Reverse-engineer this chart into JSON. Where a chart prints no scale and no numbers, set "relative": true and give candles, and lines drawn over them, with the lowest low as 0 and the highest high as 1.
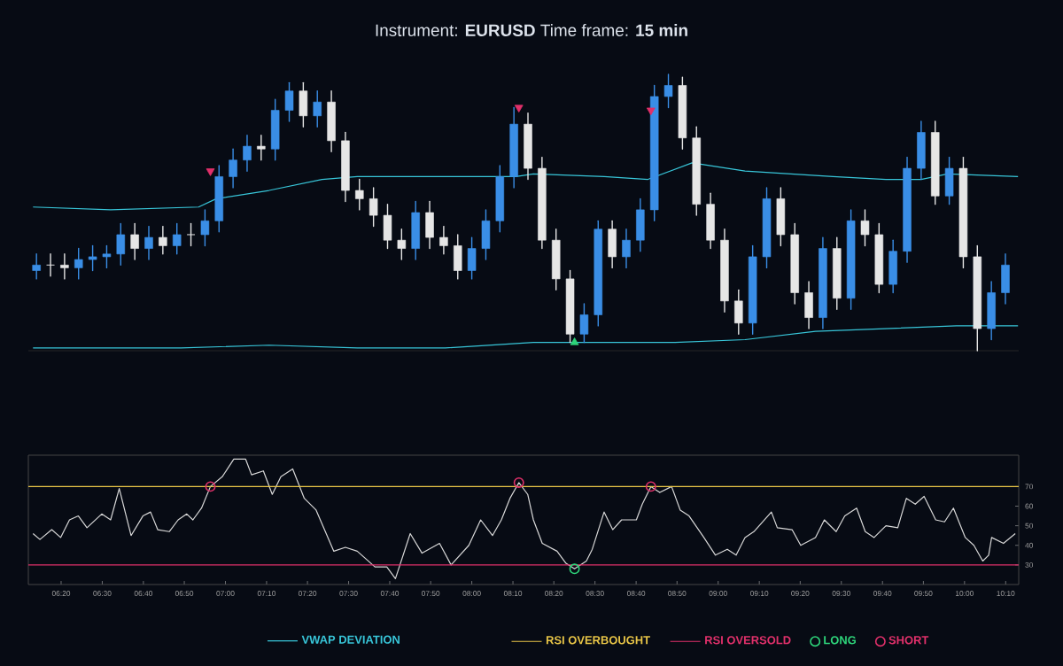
{
  "chart_data": [
    {
      "type": "candlestick",
      "title": "Instrument: **EURUSD** Time frame: **15 min**",
      "relative": true,
      "legend": "bottom",
      "xlim": [
        6.2,
        10.22
      ],
      "x": [
        6.233,
        6.29,
        6.347,
        6.404,
        6.461,
        6.518,
        6.575,
        6.632,
        6.689,
        6.746,
        6.803,
        6.86,
        6.917,
        6.974,
        7.031,
        7.088,
        7.145,
        7.202,
        7.259,
        7.316,
        7.373,
        7.43,
        7.487,
        7.544,
        7.601,
        7.658,
        7.715,
        7.772,
        7.829,
        7.886,
        7.943,
        8.0,
        8.057,
        8.114,
        8.171,
        8.228,
        8.285,
        8.342,
        8.399,
        8.456,
        8.513,
        8.57,
        8.627,
        8.684,
        8.741,
        8.798,
        8.855,
        8.912,
        8.969,
        9.026,
        9.083,
        9.14,
        9.197,
        9.254,
        9.311,
        9.368,
        9.425,
        9.482,
        9.539,
        9.596,
        9.653,
        9.71,
        9.767,
        9.824,
        9.881,
        9.938,
        9.995,
        10.052,
        10.109,
        10.166
      ],
      "ohlc": [
        [
          0.29,
          0.35,
          0.26,
          0.31
        ],
        [
          0.31,
          0.35,
          0.27,
          0.31
        ],
        [
          0.31,
          0.35,
          0.26,
          0.3
        ],
        [
          0.3,
          0.37,
          0.26,
          0.33
        ],
        [
          0.33,
          0.38,
          0.29,
          0.34
        ],
        [
          0.34,
          0.38,
          0.3,
          0.35
        ],
        [
          0.35,
          0.46,
          0.31,
          0.42
        ],
        [
          0.42,
          0.46,
          0.33,
          0.37
        ],
        [
          0.37,
          0.45,
          0.33,
          0.41
        ],
        [
          0.41,
          0.45,
          0.35,
          0.38
        ],
        [
          0.38,
          0.46,
          0.35,
          0.42
        ],
        [
          0.42,
          0.46,
          0.38,
          0.42
        ],
        [
          0.42,
          0.51,
          0.38,
          0.47
        ],
        [
          0.47,
          0.67,
          0.43,
          0.63
        ],
        [
          0.63,
          0.73,
          0.59,
          0.69
        ],
        [
          0.69,
          0.78,
          0.65,
          0.74
        ],
        [
          0.74,
          0.78,
          0.69,
          0.73
        ],
        [
          0.73,
          0.91,
          0.69,
          0.87
        ],
        [
          0.87,
          0.97,
          0.83,
          0.94
        ],
        [
          0.94,
          0.97,
          0.81,
          0.85
        ],
        [
          0.85,
          0.94,
          0.81,
          0.9
        ],
        [
          0.9,
          0.94,
          0.72,
          0.76
        ],
        [
          0.76,
          0.79,
          0.54,
          0.58
        ],
        [
          0.58,
          0.62,
          0.51,
          0.55
        ],
        [
          0.55,
          0.59,
          0.45,
          0.49
        ],
        [
          0.49,
          0.53,
          0.37,
          0.4
        ],
        [
          0.4,
          0.44,
          0.33,
          0.37
        ],
        [
          0.37,
          0.54,
          0.33,
          0.5
        ],
        [
          0.5,
          0.54,
          0.37,
          0.41
        ],
        [
          0.41,
          0.45,
          0.35,
          0.38
        ],
        [
          0.38,
          0.42,
          0.26,
          0.29
        ],
        [
          0.29,
          0.41,
          0.26,
          0.37
        ],
        [
          0.37,
          0.51,
          0.33,
          0.47
        ],
        [
          0.47,
          0.67,
          0.43,
          0.63
        ],
        [
          0.63,
          0.88,
          0.59,
          0.82
        ],
        [
          0.82,
          0.86,
          0.62,
          0.66
        ],
        [
          0.66,
          0.7,
          0.37,
          0.4
        ],
        [
          0.4,
          0.44,
          0.22,
          0.26
        ],
        [
          0.26,
          0.29,
          0.03,
          0.06
        ],
        [
          0.06,
          0.17,
          0.03,
          0.13
        ],
        [
          0.13,
          0.47,
          0.09,
          0.44
        ],
        [
          0.44,
          0.47,
          0.3,
          0.34
        ],
        [
          0.34,
          0.44,
          0.3,
          0.4
        ],
        [
          0.4,
          0.55,
          0.36,
          0.51
        ],
        [
          0.51,
          0.96,
          0.47,
          0.92
        ],
        [
          0.92,
          1,
          0.88,
          0.96
        ],
        [
          0.96,
          0.99,
          0.73,
          0.77
        ],
        [
          0.77,
          0.81,
          0.49,
          0.53
        ],
        [
          0.53,
          0.57,
          0.37,
          0.4
        ],
        [
          0.4,
          0.44,
          0.14,
          0.18
        ],
        [
          0.18,
          0.22,
          0.06,
          0.1
        ],
        [
          0.1,
          0.38,
          0.06,
          0.34
        ],
        [
          0.34,
          0.59,
          0.3,
          0.55
        ],
        [
          0.55,
          0.59,
          0.38,
          0.42
        ],
        [
          0.42,
          0.46,
          0.17,
          0.21
        ],
        [
          0.21,
          0.25,
          0.08,
          0.12
        ],
        [
          0.12,
          0.41,
          0.08,
          0.37
        ],
        [
          0.37,
          0.41,
          0.15,
          0.19
        ],
        [
          0.19,
          0.51,
          0.15,
          0.47
        ],
        [
          0.47,
          0.51,
          0.38,
          0.42
        ],
        [
          0.42,
          0.46,
          0.21,
          0.24
        ],
        [
          0.24,
          0.4,
          0.21,
          0.36
        ],
        [
          0.36,
          0.7,
          0.32,
          0.66
        ],
        [
          0.66,
          0.83,
          0.62,
          0.79
        ],
        [
          0.79,
          0.83,
          0.53,
          0.56
        ],
        [
          0.56,
          0.7,
          0.53,
          0.66
        ],
        [
          0.66,
          0.7,
          0.3,
          0.34
        ],
        [
          0.34,
          0.38,
          0,
          0.08
        ],
        [
          0.08,
          0.25,
          0.04,
          0.21
        ],
        [
          0.21,
          0.35,
          0.17,
          0.31
        ]
      ],
      "colors": [
        "#3a8ee6",
        "#e6e6e6",
        "#e6e6e6",
        "#3a8ee6",
        "#3a8ee6",
        "#3a8ee6",
        "#3a8ee6",
        "#e6e6e6",
        "#3a8ee6",
        "#e6e6e6",
        "#3a8ee6",
        "#e6e6e6",
        "#3a8ee6",
        "#3a8ee6",
        "#3a8ee6",
        "#3a8ee6",
        "#e6e6e6",
        "#3a8ee6",
        "#3a8ee6",
        "#e6e6e6",
        "#3a8ee6",
        "#e6e6e6",
        "#e6e6e6",
        "#e6e6e6",
        "#e6e6e6",
        "#e6e6e6",
        "#e6e6e6",
        "#3a8ee6",
        "#e6e6e6",
        "#e6e6e6",
        "#e6e6e6",
        "#3a8ee6",
        "#3a8ee6",
        "#3a8ee6",
        "#3a8ee6",
        "#e6e6e6",
        "#e6e6e6",
        "#e6e6e6",
        "#e6e6e6",
        "#3a8ee6",
        "#3a8ee6",
        "#e6e6e6",
        "#3a8ee6",
        "#3a8ee6",
        "#3a8ee6",
        "#3a8ee6",
        "#e6e6e6",
        "#e6e6e6",
        "#e6e6e6",
        "#e6e6e6",
        "#e6e6e6",
        "#3a8ee6",
        "#3a8ee6",
        "#e6e6e6",
        "#e6e6e6",
        "#e6e6e6",
        "#3a8ee6",
        "#e6e6e6",
        "#3a8ee6",
        "#e6e6e6",
        "#e6e6e6",
        "#3a8ee6",
        "#3a8ee6",
        "#3a8ee6",
        "#e6e6e6",
        "#3a8ee6",
        "#e6e6e6",
        "#e6e6e6",
        "#3a8ee6",
        "#3a8ee6"
      ],
      "series": [
        {
          "name": "VWAP DEVIATION",
          "type": "line",
          "color": "#38c6d9",
          "x": [
            6.219,
            6.534,
            6.891,
            6.963,
            7.177,
            7.392,
            7.535,
            7.893,
            8.179,
            8.25,
            8.537,
            8.715,
            8.894,
            9.109,
            9.466,
            9.681,
            9.824,
            9.931,
            10.217
          ],
          "values": [
            0.52,
            0.51,
            0.52,
            0.55,
            0.58,
            0.62,
            0.63,
            0.63,
            0.63,
            0.64,
            0.63,
            0.62,
            0.68,
            0.65,
            0.63,
            0.62,
            0.62,
            0.64,
            0.63
          ]
        },
        {
          "type": "line",
          "color": "#38c6d9",
          "x": [
            6.219,
            6.82,
            7.177,
            7.535,
            7.893,
            8.25,
            8.465,
            8.823,
            9.109,
            9.395,
            9.681,
            9.967,
            10.217
          ],
          "values": [
            0.01,
            0.01,
            0.02,
            0.01,
            0.01,
            0.03,
            0.03,
            0.03,
            0.04,
            0.07,
            0.08,
            0.09,
            0.09
          ]
        },
        {
          "type": "scatter",
          "marker": "triangle",
          "color": "#e0306a",
          "x": [
            6.939,
            8.191,
            8.727
          ],
          "values": [
            0.65,
            0.88,
            0.87
          ]
        },
        {
          "type": "scatter",
          "marker": "triangle",
          "color": "#2ed47a",
          "x": [
            8.417
          ],
          "values": [
            0.03
          ]
        }
      ]
    },
    {
      "type": "line",
      "legend": "bottom",
      "xlim": [
        6.2,
        10.22
      ],
      "ylim": [
        20,
        86
      ],
      "yticks": [
        30,
        40,
        50,
        60,
        70
      ],
      "xticks": [
        {
          "value": 6.333,
          "label": "06:20"
        },
        {
          "value": 6.5,
          "label": "06:30"
        },
        {
          "value": 6.667,
          "label": "06:40"
        },
        {
          "value": 6.833,
          "label": "06:50"
        },
        {
          "value": 7,
          "label": "07:00"
        },
        {
          "value": 7.167,
          "label": "07:10"
        },
        {
          "value": 7.333,
          "label": "07:20"
        },
        {
          "value": 7.5,
          "label": "07:30"
        },
        {
          "value": 7.667,
          "label": "07:40"
        },
        {
          "value": 7.833,
          "label": "07:50"
        },
        {
          "value": 8,
          "label": "08:00"
        },
        {
          "value": 8.167,
          "label": "08:10"
        },
        {
          "value": 8.333,
          "label": "08:20"
        },
        {
          "value": 8.5,
          "label": "08:30"
        },
        {
          "value": 8.667,
          "label": "08:40"
        },
        {
          "value": 8.833,
          "label": "08:50"
        },
        {
          "value": 9,
          "label": "09:00"
        },
        {
          "value": 9.167,
          "label": "09:10"
        },
        {
          "value": 9.333,
          "label": "09:20"
        },
        {
          "value": 9.5,
          "label": "09:30"
        },
        {
          "value": 9.667,
          "label": "09:40"
        },
        {
          "value": 9.833,
          "label": "09:50"
        },
        {
          "value": 10,
          "label": "10:00"
        },
        {
          "value": 10.167,
          "label": "10:10"
        }
      ],
      "series": [
        {
          "type": "line",
          "color": "#d8d8d8",
          "x": [
            6.219,
            6.247,
            6.295,
            6.331,
            6.367,
            6.403,
            6.438,
            6.498,
            6.534,
            6.569,
            6.617,
            6.665,
            6.696,
            6.725,
            6.772,
            6.808,
            6.843,
            6.868,
            6.903,
            6.939,
            6.987,
            7.034,
            7.082,
            7.106,
            7.154,
            7.19,
            7.225,
            7.273,
            7.32,
            7.368,
            7.44,
            7.487,
            7.535,
            7.607,
            7.655,
            7.69,
            7.75,
            7.798,
            7.869,
            7.916,
            7.988,
            8.036,
            8.084,
            8.12,
            8.155,
            8.191,
            8.227,
            8.25,
            8.286,
            8.346,
            8.381,
            8.417,
            8.465,
            8.489,
            8.537,
            8.572,
            8.608,
            8.668,
            8.692,
            8.727,
            8.763,
            8.811,
            8.846,
            8.882,
            8.942,
            8.989,
            9.037,
            9.073,
            9.109,
            9.145,
            9.216,
            9.24,
            9.3,
            9.335,
            9.395,
            9.431,
            9.479,
            9.514,
            9.562,
            9.597,
            9.633,
            9.681,
            9.729,
            9.764,
            9.8,
            9.836,
            9.883,
            9.919,
            9.955,
            10.003,
            10.038,
            10.074,
            10.098,
            10.11,
            10.158,
            10.206
          ],
          "values": [
            46,
            43,
            48,
            44,
            53,
            55,
            49,
            56,
            53,
            69,
            45,
            55,
            57,
            48,
            47,
            53,
            56,
            53,
            59,
            70,
            75,
            84,
            84,
            76,
            78,
            66,
            75,
            79,
            64,
            58,
            37,
            39,
            37,
            29,
            29,
            23,
            46,
            36,
            41,
            30,
            40,
            53,
            45,
            53,
            64,
            72,
            66,
            53,
            41,
            37,
            31,
            28,
            32,
            38,
            57,
            48,
            53,
            53,
            61,
            70,
            67,
            70,
            58,
            55,
            44,
            35,
            38,
            35,
            44,
            47,
            57,
            49,
            48,
            40,
            44,
            53,
            47,
            55,
            59,
            47,
            44,
            50,
            49,
            64,
            61,
            65,
            53,
            52,
            59,
            44,
            40,
            32,
            35,
            44,
            41,
            46
          ]
        },
        {
          "name": "RSI OVERBOUGHT",
          "type": "line",
          "color": "#e8c547",
          "x": [
            6.2,
            10.22
          ],
          "values": [
            70,
            70
          ]
        },
        {
          "name": "RSI OVERSOLD",
          "type": "line",
          "color": "#e0306a",
          "x": [
            6.2,
            10.22
          ],
          "values": [
            30,
            30
          ]
        },
        {
          "name": "LONG",
          "type": "scatter",
          "marker": "circle",
          "color": "#2ed47a",
          "x": [
            8.417
          ],
          "values": [
            28
          ]
        },
        {
          "name": "SHORT",
          "type": "scatter",
          "marker": "circle",
          "color": "#e0306a",
          "x": [
            6.939,
            8.191,
            8.727
          ],
          "values": [
            70,
            72,
            70
          ]
        }
      ]
    }
  ]
}
